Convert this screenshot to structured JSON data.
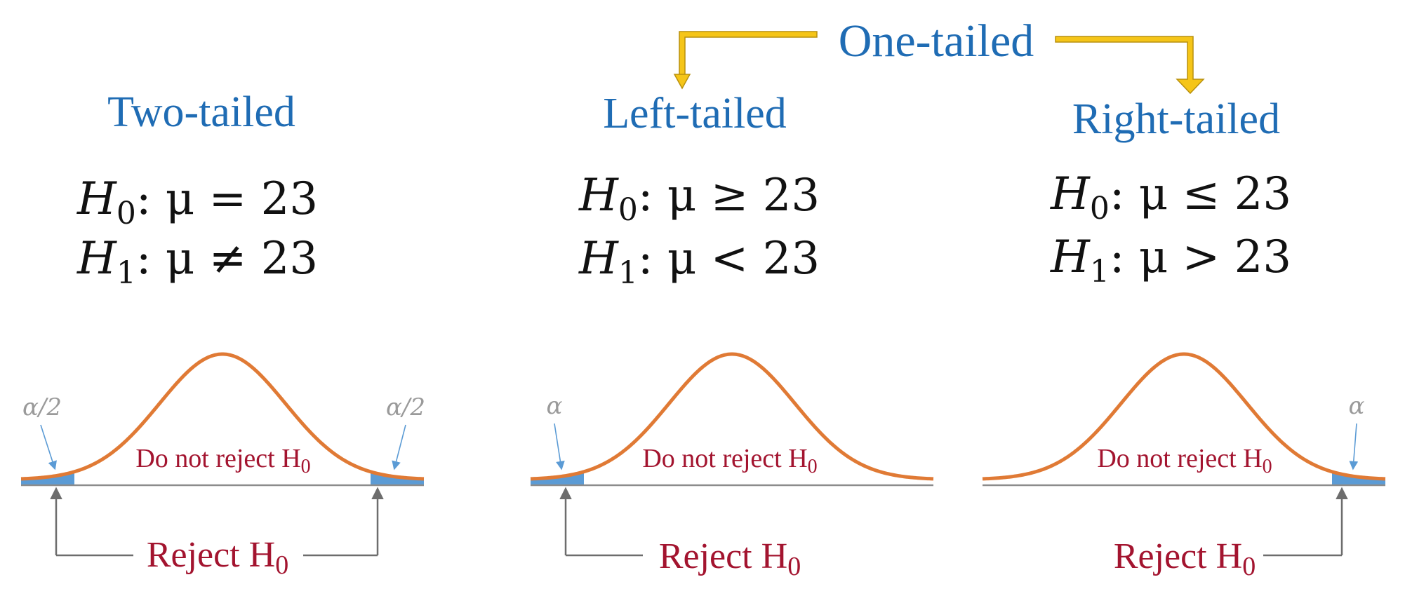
{
  "one_tailed_label": "One-tailed",
  "panels": [
    {
      "id": "two",
      "title": "Two-tailed",
      "h0": {
        "symbol": "H",
        "sub": "0",
        "rest": ":  μ = 23"
      },
      "h1": {
        "symbol": "H",
        "sub": "1",
        "rest": ":  μ ≠ 23"
      },
      "tails": [
        "left",
        "right"
      ],
      "alpha_text": "α/2",
      "do_not_reject": {
        "text": "Do not reject H",
        "sub": "0"
      },
      "reject": {
        "text": "Reject H",
        "sub": "0"
      }
    },
    {
      "id": "left",
      "title": "Left-tailed",
      "h0": {
        "symbol": "H",
        "sub": "0",
        "rest": ":  μ ≥ 23"
      },
      "h1": {
        "symbol": "H",
        "sub": "1",
        "rest": ":  μ < 23"
      },
      "tails": [
        "left"
      ],
      "alpha_text": "α",
      "do_not_reject": {
        "text": "Do not reject H",
        "sub": "0"
      },
      "reject": {
        "text": "Reject H",
        "sub": "0"
      }
    },
    {
      "id": "right",
      "title": "Right-tailed",
      "h0": {
        "symbol": "H",
        "sub": "0",
        "rest": ":  μ ≤ 23"
      },
      "h1": {
        "symbol": "H",
        "sub": "1",
        "rest": ":  μ > 23"
      },
      "tails": [
        "right"
      ],
      "alpha_text": "α",
      "do_not_reject": {
        "text": "Do not reject H",
        "sub": "0"
      },
      "reject": {
        "text": "Reject H",
        "sub": "0"
      }
    }
  ],
  "colors": {
    "heading": "#1f6cb4",
    "curve": "#e07a35",
    "tail_fill": "#5b9bd5",
    "region_text": "#a3142f",
    "arrow_gold": "#f5c518"
  }
}
